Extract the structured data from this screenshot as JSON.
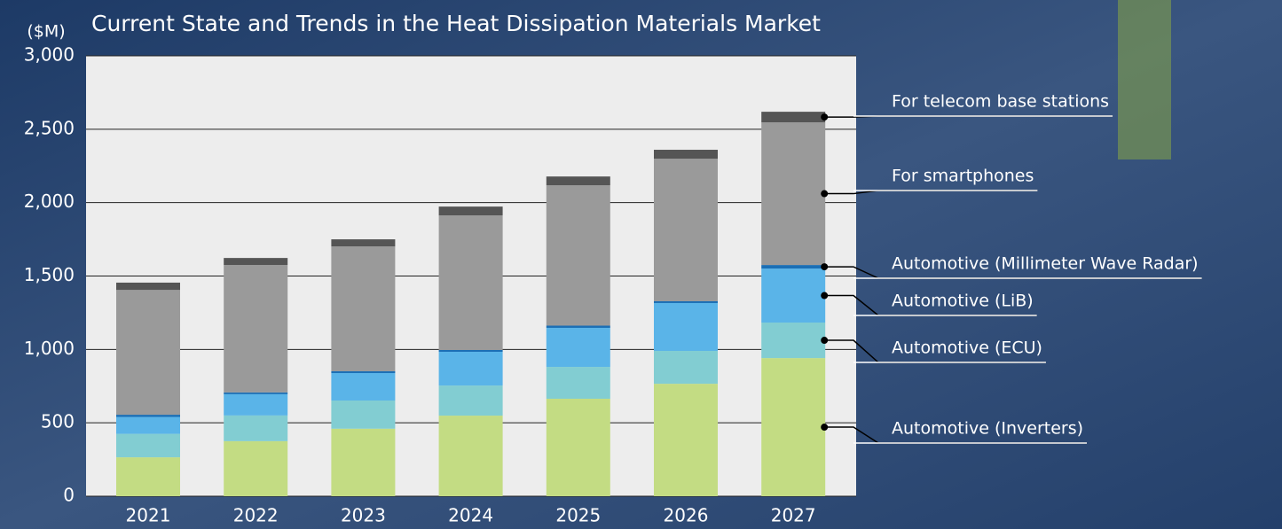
{
  "chart_data": {
    "type": "stacked_bar",
    "title": "Current State and Trends in the Heat Dissipation Materials Market",
    "y_label": "($M)",
    "categories": [
      "2021",
      "2022",
      "2023",
      "2024",
      "2025",
      "2026",
      "2027"
    ],
    "series": [
      {
        "name": "Automotive (Inverters)",
        "color": "#c3dc83",
        "values": [
          265,
          375,
          460,
          549,
          664,
          766,
          941
        ]
      },
      {
        "name": "Automotive (ECU)",
        "color": "#82cdd2",
        "values": [
          160,
          175,
          192,
          205,
          217,
          224,
          242
        ]
      },
      {
        "name": "Automotive (LiB)",
        "color": "#5ab4e8",
        "values": [
          115,
          145,
          187,
          230,
          266,
          326,
          368
        ]
      },
      {
        "name": "Automotive (Millimeter Wave Radar)",
        "color": "#1b6fb5",
        "values": [
          15,
          12,
          12,
          12,
          15,
          12,
          24
        ]
      },
      {
        "name": "For smartphones",
        "color": "#9a9a9a",
        "values": [
          850,
          868,
          851,
          917,
          956,
          971,
          972
        ]
      },
      {
        "name": "For telecom base stations",
        "color": "#555555",
        "values": [
          50,
          48,
          48,
          60,
          60,
          61,
          72
        ]
      }
    ],
    "ylim": [
      0,
      3000
    ],
    "yticks": [
      0,
      {
        "value": 500,
        "label": "500"
      },
      {
        "value": 1000,
        "label": "1,000"
      },
      {
        "value": 1500,
        "label": "1,500"
      },
      {
        "value": 2000,
        "label": "2,000"
      },
      {
        "value": 2500,
        "label": "2,500"
      },
      {
        "value": 3000,
        "label": "3,000"
      }
    ],
    "grid": true
  }
}
